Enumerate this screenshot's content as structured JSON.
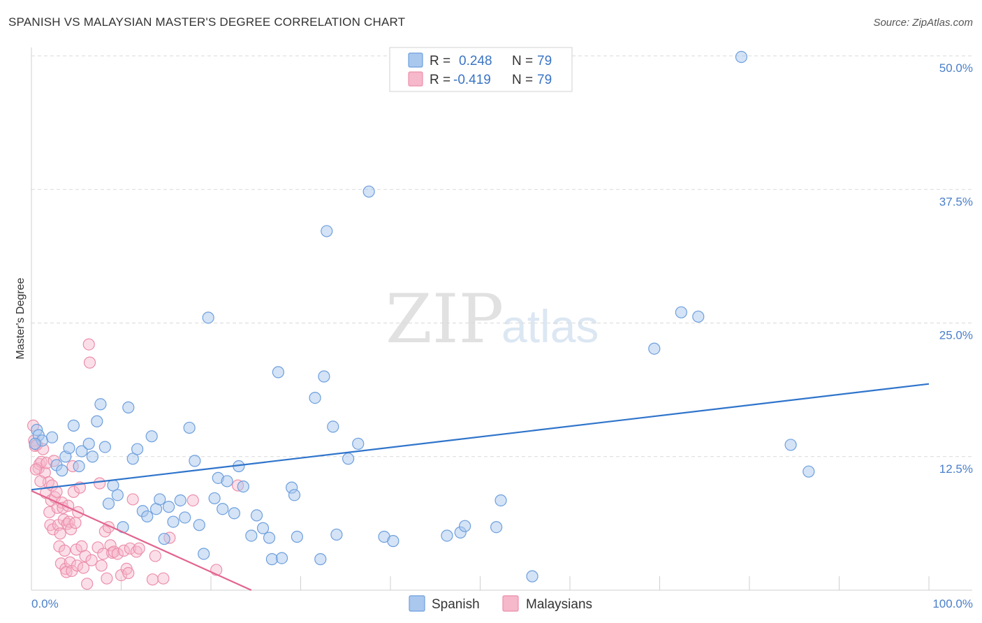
{
  "header": {
    "title": "SPANISH VS MALAYSIAN MASTER'S DEGREE CORRELATION CHART",
    "source": "Source: ZipAtlas.com"
  },
  "watermark": {
    "zip": "ZIP",
    "atlas": "atlas"
  },
  "legend": {
    "r_label": "R =",
    "n_label": "N =",
    "rows": [
      {
        "r": "0.248",
        "n": "79"
      },
      {
        "r": "-0.419",
        "n": "79"
      }
    ]
  },
  "colors": {
    "spanish_fill": "#aac8ee",
    "spanish_stroke": "#6d9fdd",
    "spanish_line": "#2f74cb",
    "malaysian_fill": "#f6b8cb",
    "malaysian_stroke": "#ec8fab",
    "malaysian_line": "#e2648e",
    "grid": "#d9d9d9",
    "axis_text": "#4a7fc9"
  },
  "chart_data": {
    "type": "scatter",
    "title": "SPANISH VS MALAYSIAN MASTER'S DEGREE CORRELATION CHART",
    "xlabel": "",
    "ylabel": "Master's Degree",
    "xlim": [
      0,
      100
    ],
    "ylim": [
      0,
      50
    ],
    "x_tick_labels": [
      "0.0%",
      "100.0%"
    ],
    "y_ticks": [
      12.5,
      25.0,
      37.5,
      50.0
    ],
    "y_tick_labels": [
      "12.5%",
      "25.0%",
      "37.5%",
      "50.0%"
    ],
    "grid": true,
    "legend_position": "top-center",
    "series": [
      {
        "name": "Spanish",
        "r": 0.248,
        "n": 79,
        "trend": {
          "x": [
            0,
            100
          ],
          "y": [
            9.4,
            19.3
          ]
        },
        "points": [
          [
            0.6,
            15.0
          ],
          [
            0.8,
            14.5
          ],
          [
            1.2,
            14.0
          ],
          [
            2.3,
            14.3
          ],
          [
            2.8,
            11.7
          ],
          [
            3.4,
            11.2
          ],
          [
            3.8,
            12.5
          ],
          [
            4.2,
            13.3
          ],
          [
            4.7,
            15.4
          ],
          [
            5.3,
            11.6
          ],
          [
            5.6,
            13.0
          ],
          [
            6.4,
            13.7
          ],
          [
            6.8,
            12.5
          ],
          [
            7.3,
            15.8
          ],
          [
            7.7,
            17.4
          ],
          [
            8.2,
            13.4
          ],
          [
            8.6,
            8.1
          ],
          [
            9.1,
            9.8
          ],
          [
            9.6,
            8.9
          ],
          [
            10.2,
            5.9
          ],
          [
            10.8,
            17.1
          ],
          [
            11.3,
            12.3
          ],
          [
            11.8,
            13.2
          ],
          [
            12.4,
            7.4
          ],
          [
            12.9,
            6.9
          ],
          [
            13.4,
            14.4
          ],
          [
            13.9,
            7.6
          ],
          [
            14.3,
            8.5
          ],
          [
            14.8,
            4.8
          ],
          [
            15.3,
            7.8
          ],
          [
            15.8,
            6.4
          ],
          [
            16.6,
            8.4
          ],
          [
            17.1,
            6.8
          ],
          [
            17.6,
            15.2
          ],
          [
            18.2,
            12.1
          ],
          [
            18.7,
            6.1
          ],
          [
            19.2,
            3.4
          ],
          [
            19.7,
            25.5
          ],
          [
            20.4,
            8.6
          ],
          [
            20.8,
            10.5
          ],
          [
            21.3,
            7.6
          ],
          [
            21.8,
            10.2
          ],
          [
            22.6,
            7.2
          ],
          [
            23.1,
            11.6
          ],
          [
            23.6,
            9.7
          ],
          [
            24.5,
            5.1
          ],
          [
            25.1,
            7.0
          ],
          [
            25.8,
            5.8
          ],
          [
            26.5,
            4.9
          ],
          [
            26.8,
            2.9
          ],
          [
            27.5,
            20.4
          ],
          [
            27.9,
            3.0
          ],
          [
            29.0,
            9.6
          ],
          [
            29.3,
            8.9
          ],
          [
            29.6,
            5.0
          ],
          [
            31.6,
            18.0
          ],
          [
            32.2,
            2.9
          ],
          [
            32.6,
            20.0
          ],
          [
            32.9,
            33.6
          ],
          [
            33.6,
            15.3
          ],
          [
            34.0,
            5.2
          ],
          [
            35.3,
            12.3
          ],
          [
            36.4,
            13.7
          ],
          [
            37.6,
            37.3
          ],
          [
            39.3,
            5.0
          ],
          [
            40.3,
            4.6
          ],
          [
            46.3,
            5.1
          ],
          [
            47.8,
            5.4
          ],
          [
            48.3,
            6.0
          ],
          [
            51.8,
            5.9
          ],
          [
            52.3,
            8.4
          ],
          [
            55.8,
            1.3
          ],
          [
            69.4,
            22.6
          ],
          [
            72.4,
            26.0
          ],
          [
            74.3,
            25.6
          ],
          [
            79.1,
            49.9
          ],
          [
            84.6,
            13.6
          ],
          [
            86.6,
            11.1
          ],
          [
            0.4,
            13.7
          ]
        ]
      },
      {
        "name": "Malaysians",
        "r": -0.419,
        "n": 79,
        "trend": {
          "x": [
            0,
            24.5
          ],
          "y": [
            9.3,
            0.0
          ]
        },
        "points": [
          [
            0.2,
            15.4
          ],
          [
            0.3,
            14.0
          ],
          [
            0.4,
            13.5
          ],
          [
            0.6,
            13.6
          ],
          [
            0.8,
            11.4
          ],
          [
            0.9,
            11.8
          ],
          [
            1.1,
            12.0
          ],
          [
            1.3,
            13.2
          ],
          [
            1.5,
            11.0
          ],
          [
            1.6,
            9.1
          ],
          [
            1.7,
            11.9
          ],
          [
            1.9,
            10.1
          ],
          [
            2.0,
            7.3
          ],
          [
            2.1,
            6.1
          ],
          [
            2.2,
            8.4
          ],
          [
            2.3,
            9.8
          ],
          [
            2.4,
            5.7
          ],
          [
            2.6,
            8.7
          ],
          [
            2.8,
            9.2
          ],
          [
            2.9,
            7.7
          ],
          [
            3.0,
            6.1
          ],
          [
            3.1,
            4.1
          ],
          [
            3.2,
            5.3
          ],
          [
            3.3,
            2.5
          ],
          [
            3.4,
            8.2
          ],
          [
            3.5,
            7.7
          ],
          [
            3.6,
            6.6
          ],
          [
            3.7,
            3.7
          ],
          [
            3.8,
            2.0
          ],
          [
            3.9,
            1.7
          ],
          [
            4.0,
            6.2
          ],
          [
            4.1,
            7.9
          ],
          [
            4.2,
            6.4
          ],
          [
            4.3,
            2.6
          ],
          [
            4.4,
            5.7
          ],
          [
            4.5,
            1.8
          ],
          [
            4.6,
            11.6
          ],
          [
            4.7,
            9.2
          ],
          [
            4.9,
            6.3
          ],
          [
            5.0,
            3.8
          ],
          [
            5.1,
            2.3
          ],
          [
            5.2,
            7.3
          ],
          [
            5.4,
            9.6
          ],
          [
            5.6,
            4.1
          ],
          [
            5.8,
            2.1
          ],
          [
            6.0,
            3.2
          ],
          [
            6.2,
            0.6
          ],
          [
            6.4,
            23.0
          ],
          [
            6.5,
            21.3
          ],
          [
            6.7,
            2.8
          ],
          [
            7.4,
            4.0
          ],
          [
            7.6,
            10.0
          ],
          [
            7.8,
            2.3
          ],
          [
            8.0,
            3.4
          ],
          [
            8.2,
            5.5
          ],
          [
            8.4,
            1.1
          ],
          [
            8.6,
            5.9
          ],
          [
            8.8,
            4.2
          ],
          [
            9.0,
            3.5
          ],
          [
            9.2,
            3.6
          ],
          [
            9.6,
            3.4
          ],
          [
            10.0,
            1.4
          ],
          [
            10.3,
            3.7
          ],
          [
            10.6,
            2.0
          ],
          [
            10.8,
            1.6
          ],
          [
            11.0,
            3.9
          ],
          [
            11.3,
            8.5
          ],
          [
            11.7,
            3.6
          ],
          [
            12.0,
            3.9
          ],
          [
            13.5,
            1.0
          ],
          [
            13.8,
            3.2
          ],
          [
            14.7,
            1.1
          ],
          [
            15.4,
            4.9
          ],
          [
            18.0,
            8.4
          ],
          [
            20.6,
            1.9
          ],
          [
            23.0,
            9.8
          ],
          [
            1.0,
            10.2
          ],
          [
            2.5,
            12.1
          ],
          [
            0.5,
            11.3
          ]
        ]
      }
    ]
  },
  "bottom_legend": [
    {
      "label": "Spanish"
    },
    {
      "label": "Malaysians"
    }
  ]
}
